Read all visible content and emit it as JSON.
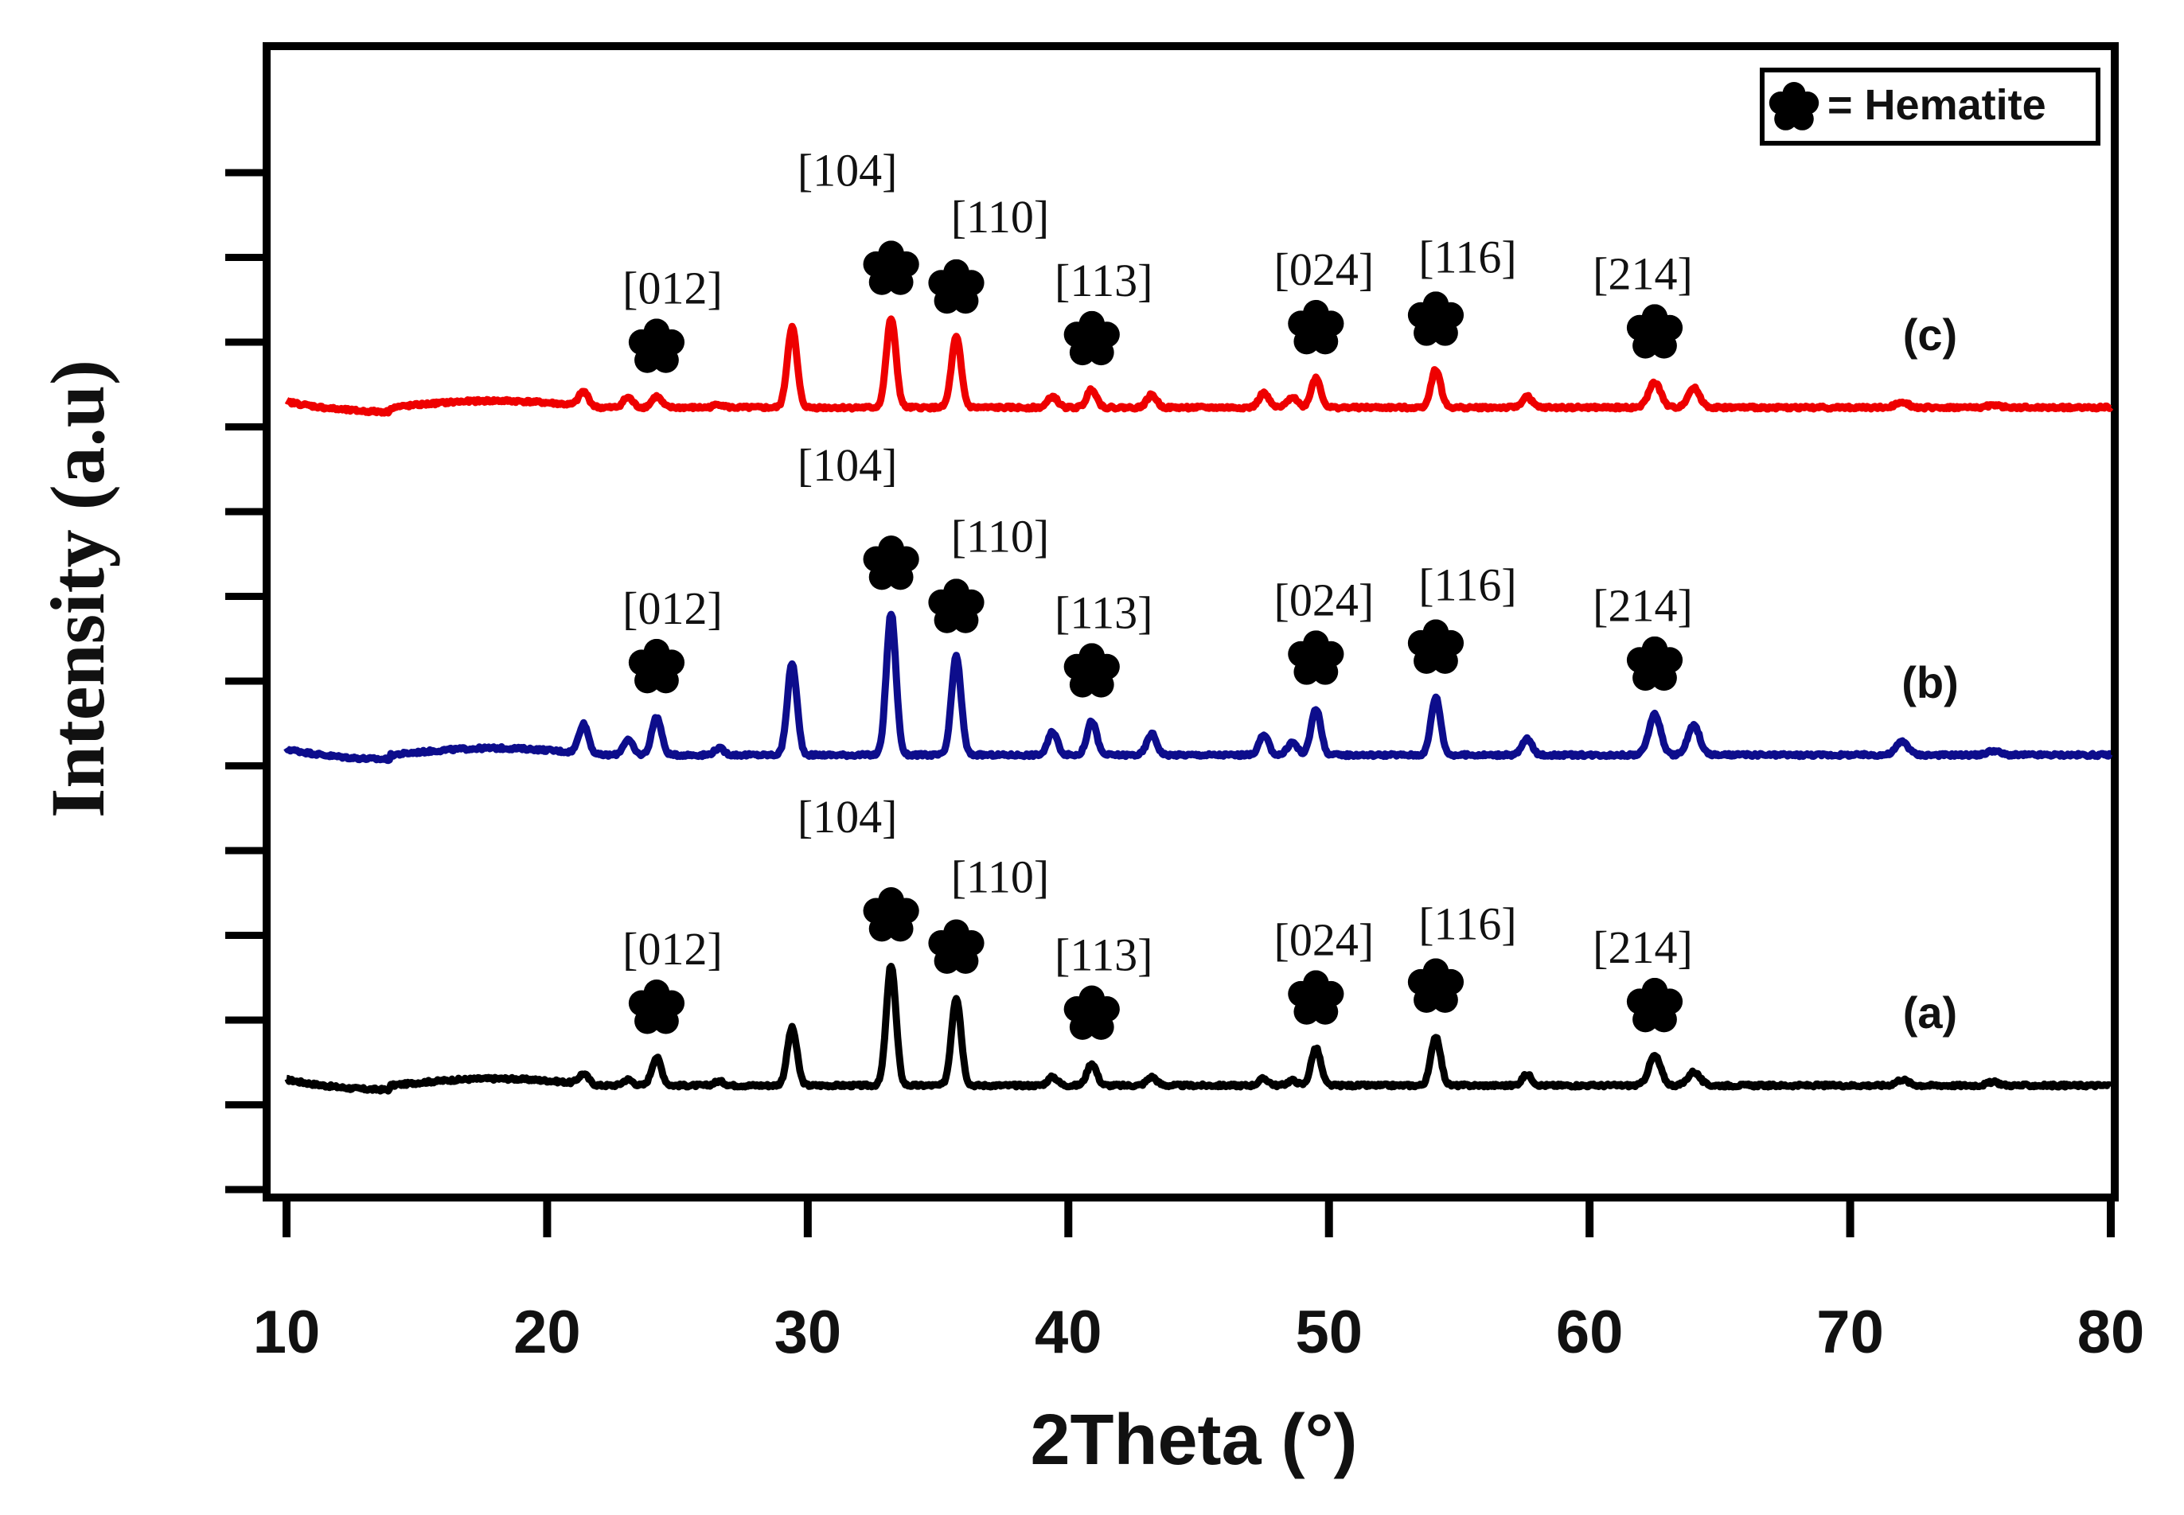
{
  "chart_data": {
    "type": "line",
    "title": "",
    "xlabel": "2Theta (°)",
    "ylabel": "Intensity (a.u)",
    "xlim": [
      10,
      80
    ],
    "x_ticks": [
      10,
      20,
      30,
      40,
      50,
      60,
      70,
      80
    ],
    "y_ticks": 13,
    "y_tick_labels_shown": false,
    "legend": {
      "marker": "star-marker",
      "label": "= Hematite",
      "position": "top-right"
    },
    "peak_labels": [
      "[012]",
      "[104]",
      "[110]",
      "[113]",
      "[024]",
      "[116]",
      "[214]"
    ],
    "peaks": [
      {
        "label": "[012]",
        "x": 24.2
      },
      {
        "label": "[104]",
        "x": 33.2
      },
      {
        "label": "[110]",
        "x": 35.7
      },
      {
        "label": "[113]",
        "x": 40.9
      },
      {
        "label": "[024]",
        "x": 49.5
      },
      {
        "label": "[116]",
        "x": 54.1
      },
      {
        "label": "[214]",
        "x": 62.5
      }
    ],
    "series": [
      {
        "name": "(a)",
        "color": "#000000",
        "baseline": 1.2,
        "peaks": [
          [
            21.4,
            0.12
          ],
          [
            23.1,
            0.07
          ],
          [
            24.2,
            0.33
          ],
          [
            26.6,
            0.05
          ],
          [
            29.4,
            0.68
          ],
          [
            33.2,
            1.42
          ],
          [
            35.7,
            1.04
          ],
          [
            39.4,
            0.1
          ],
          [
            40.9,
            0.26
          ],
          [
            43.2,
            0.1
          ],
          [
            47.5,
            0.08
          ],
          [
            48.6,
            0.06
          ],
          [
            49.5,
            0.44
          ],
          [
            54.1,
            0.58
          ],
          [
            57.6,
            0.13
          ],
          [
            62.5,
            0.35
          ],
          [
            64.0,
            0.16
          ],
          [
            72.0,
            0.07
          ],
          [
            75.5,
            0.04
          ]
        ]
      },
      {
        "name": "(b)",
        "color": "#0d0d8c",
        "baseline": 5.1,
        "peaks": [
          [
            21.4,
            0.35
          ],
          [
            23.1,
            0.18
          ],
          [
            24.2,
            0.45
          ],
          [
            26.6,
            0.08
          ],
          [
            29.4,
            1.08
          ],
          [
            33.2,
            1.67
          ],
          [
            35.7,
            1.16
          ],
          [
            39.4,
            0.27
          ],
          [
            40.9,
            0.4
          ],
          [
            43.2,
            0.25
          ],
          [
            47.5,
            0.23
          ],
          [
            48.6,
            0.15
          ],
          [
            49.5,
            0.55
          ],
          [
            54.1,
            0.68
          ],
          [
            57.6,
            0.19
          ],
          [
            62.5,
            0.48
          ],
          [
            64.0,
            0.35
          ],
          [
            72.0,
            0.16
          ],
          [
            75.5,
            0.05
          ]
        ]
      },
      {
        "name": "(c)",
        "color": "#ee0000",
        "baseline": 9.2,
        "peaks": [
          [
            21.4,
            0.17
          ],
          [
            23.1,
            0.12
          ],
          [
            24.2,
            0.13
          ],
          [
            26.6,
            0.04
          ],
          [
            29.4,
            0.95
          ],
          [
            33.2,
            1.05
          ],
          [
            35.7,
            0.83
          ],
          [
            39.4,
            0.13
          ],
          [
            40.9,
            0.22
          ],
          [
            43.2,
            0.15
          ],
          [
            47.5,
            0.17
          ],
          [
            48.6,
            0.13
          ],
          [
            49.5,
            0.35
          ],
          [
            54.1,
            0.45
          ],
          [
            57.6,
            0.13
          ],
          [
            62.5,
            0.3
          ],
          [
            64.0,
            0.23
          ],
          [
            72.0,
            0.07
          ],
          [
            75.5,
            0.03
          ]
        ]
      }
    ]
  }
}
